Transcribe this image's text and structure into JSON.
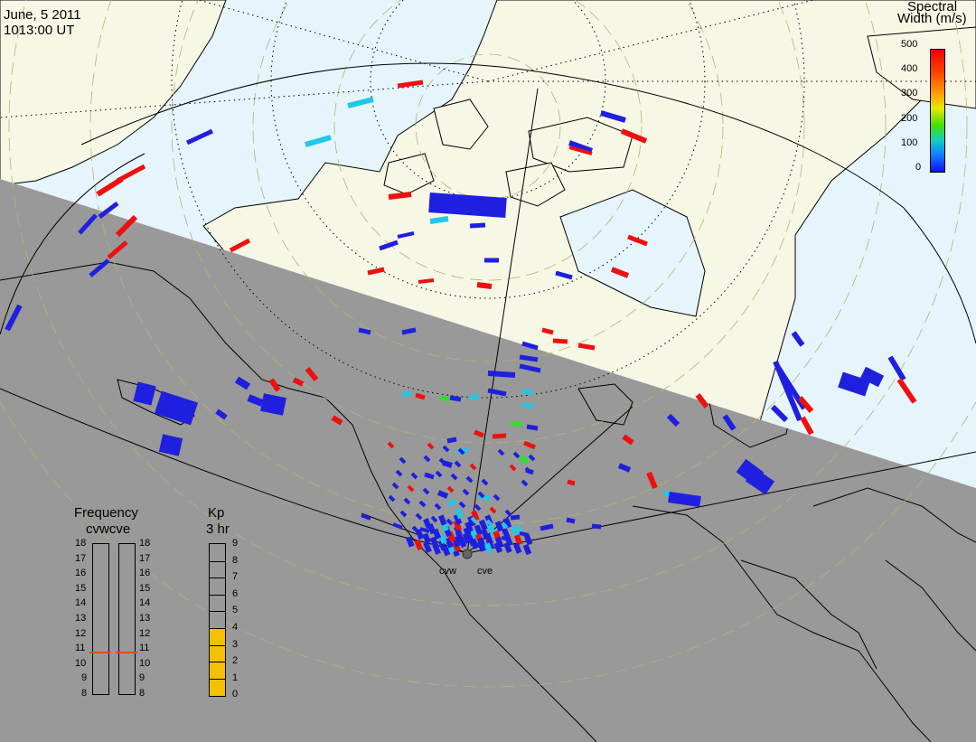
{
  "header": {
    "date": "June, 5 2011",
    "time": "1013:00 UT"
  },
  "colorbar": {
    "title_line1": "Spectral",
    "title_line2": "Width (m/s)",
    "ticks": [
      "500",
      "400",
      "300",
      "200",
      "100",
      "0"
    ],
    "range": [
      0,
      500
    ]
  },
  "frequency_panel": {
    "title": "Frequency",
    "subtitle": "cvwcve",
    "ticks": [
      "18",
      "17",
      "16",
      "15",
      "14",
      "13",
      "12",
      "11",
      "10",
      "9",
      "8"
    ],
    "cvw_value": 10.8,
    "cve_value": 10.8,
    "marker_color": "#e05010"
  },
  "kp_panel": {
    "title": "Kp",
    "subtitle": "3 hr",
    "ticks": [
      "9",
      "8",
      "7",
      "6",
      "5",
      "4",
      "3",
      "2",
      "1",
      "0"
    ],
    "value": 4,
    "fill_color": "#f5c000"
  },
  "radars": {
    "west_label": "cvw",
    "east_label": "cve"
  },
  "colors": {
    "night": "#999999",
    "land_day": "#f7f7e6",
    "ocean_day": "#e6f5fc",
    "low_width": "#1f1fe0",
    "high_width": "#ee1010",
    "mid_width": "#20c8e8",
    "green_width": "#30e030"
  }
}
